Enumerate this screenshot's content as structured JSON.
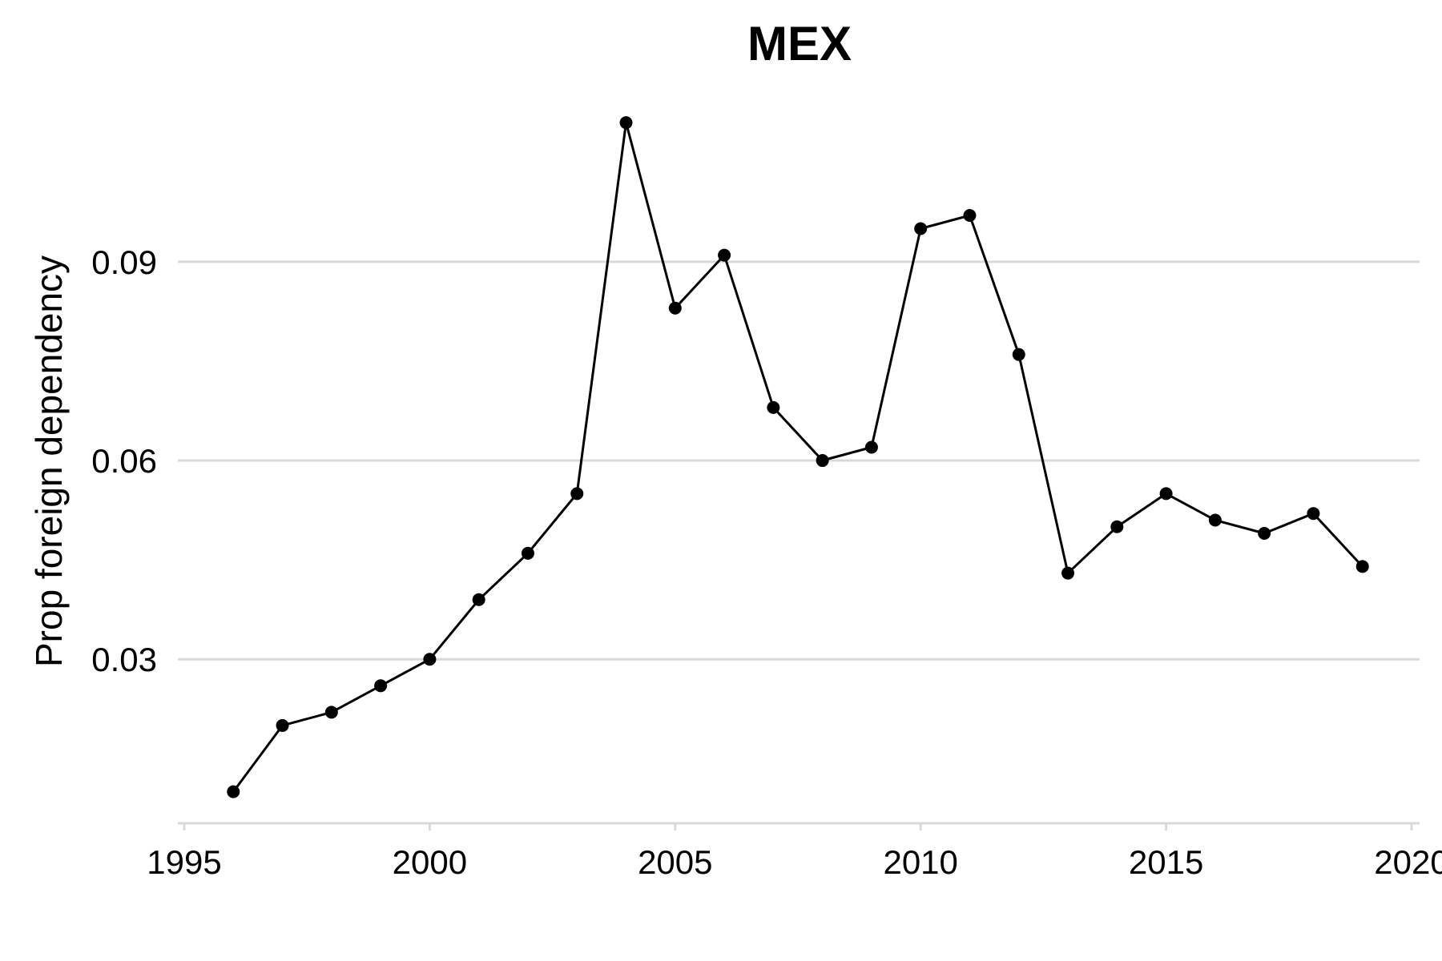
{
  "chart_data": {
    "type": "line",
    "title": "MEX",
    "xlabel": "",
    "ylabel": "Prop foreign dependency",
    "xlim": [
      1995,
      2020
    ],
    "ylim": [
      0.005,
      0.1138
    ],
    "x_ticks": [
      1995,
      2000,
      2005,
      2010,
      2015,
      2020
    ],
    "x_tick_labels": [
      "1995",
      "2000",
      "2005",
      "2010",
      "2015",
      "2020"
    ],
    "y_ticks": [
      0.03,
      0.06,
      0.09
    ],
    "y_tick_labels": [
      "0.03",
      "0.06",
      "0.09"
    ],
    "grid": "horizontal",
    "series": [
      {
        "color": "#000000",
        "x": [
          1996,
          1997,
          1998,
          1999,
          2000,
          2001,
          2002,
          2003,
          2004,
          2005,
          2006,
          2007,
          2008,
          2009,
          2010,
          2011,
          2012,
          2013,
          2014,
          2015,
          2016,
          2017,
          2018,
          2019
        ],
        "values": [
          0.01,
          0.02,
          0.022,
          0.026,
          0.03,
          0.039,
          0.046,
          0.055,
          0.111,
          0.083,
          0.091,
          0.068,
          0.06,
          0.062,
          0.095,
          0.097,
          0.076,
          0.043,
          0.05,
          0.055,
          0.051,
          0.049,
          0.052,
          0.044
        ]
      }
    ]
  }
}
